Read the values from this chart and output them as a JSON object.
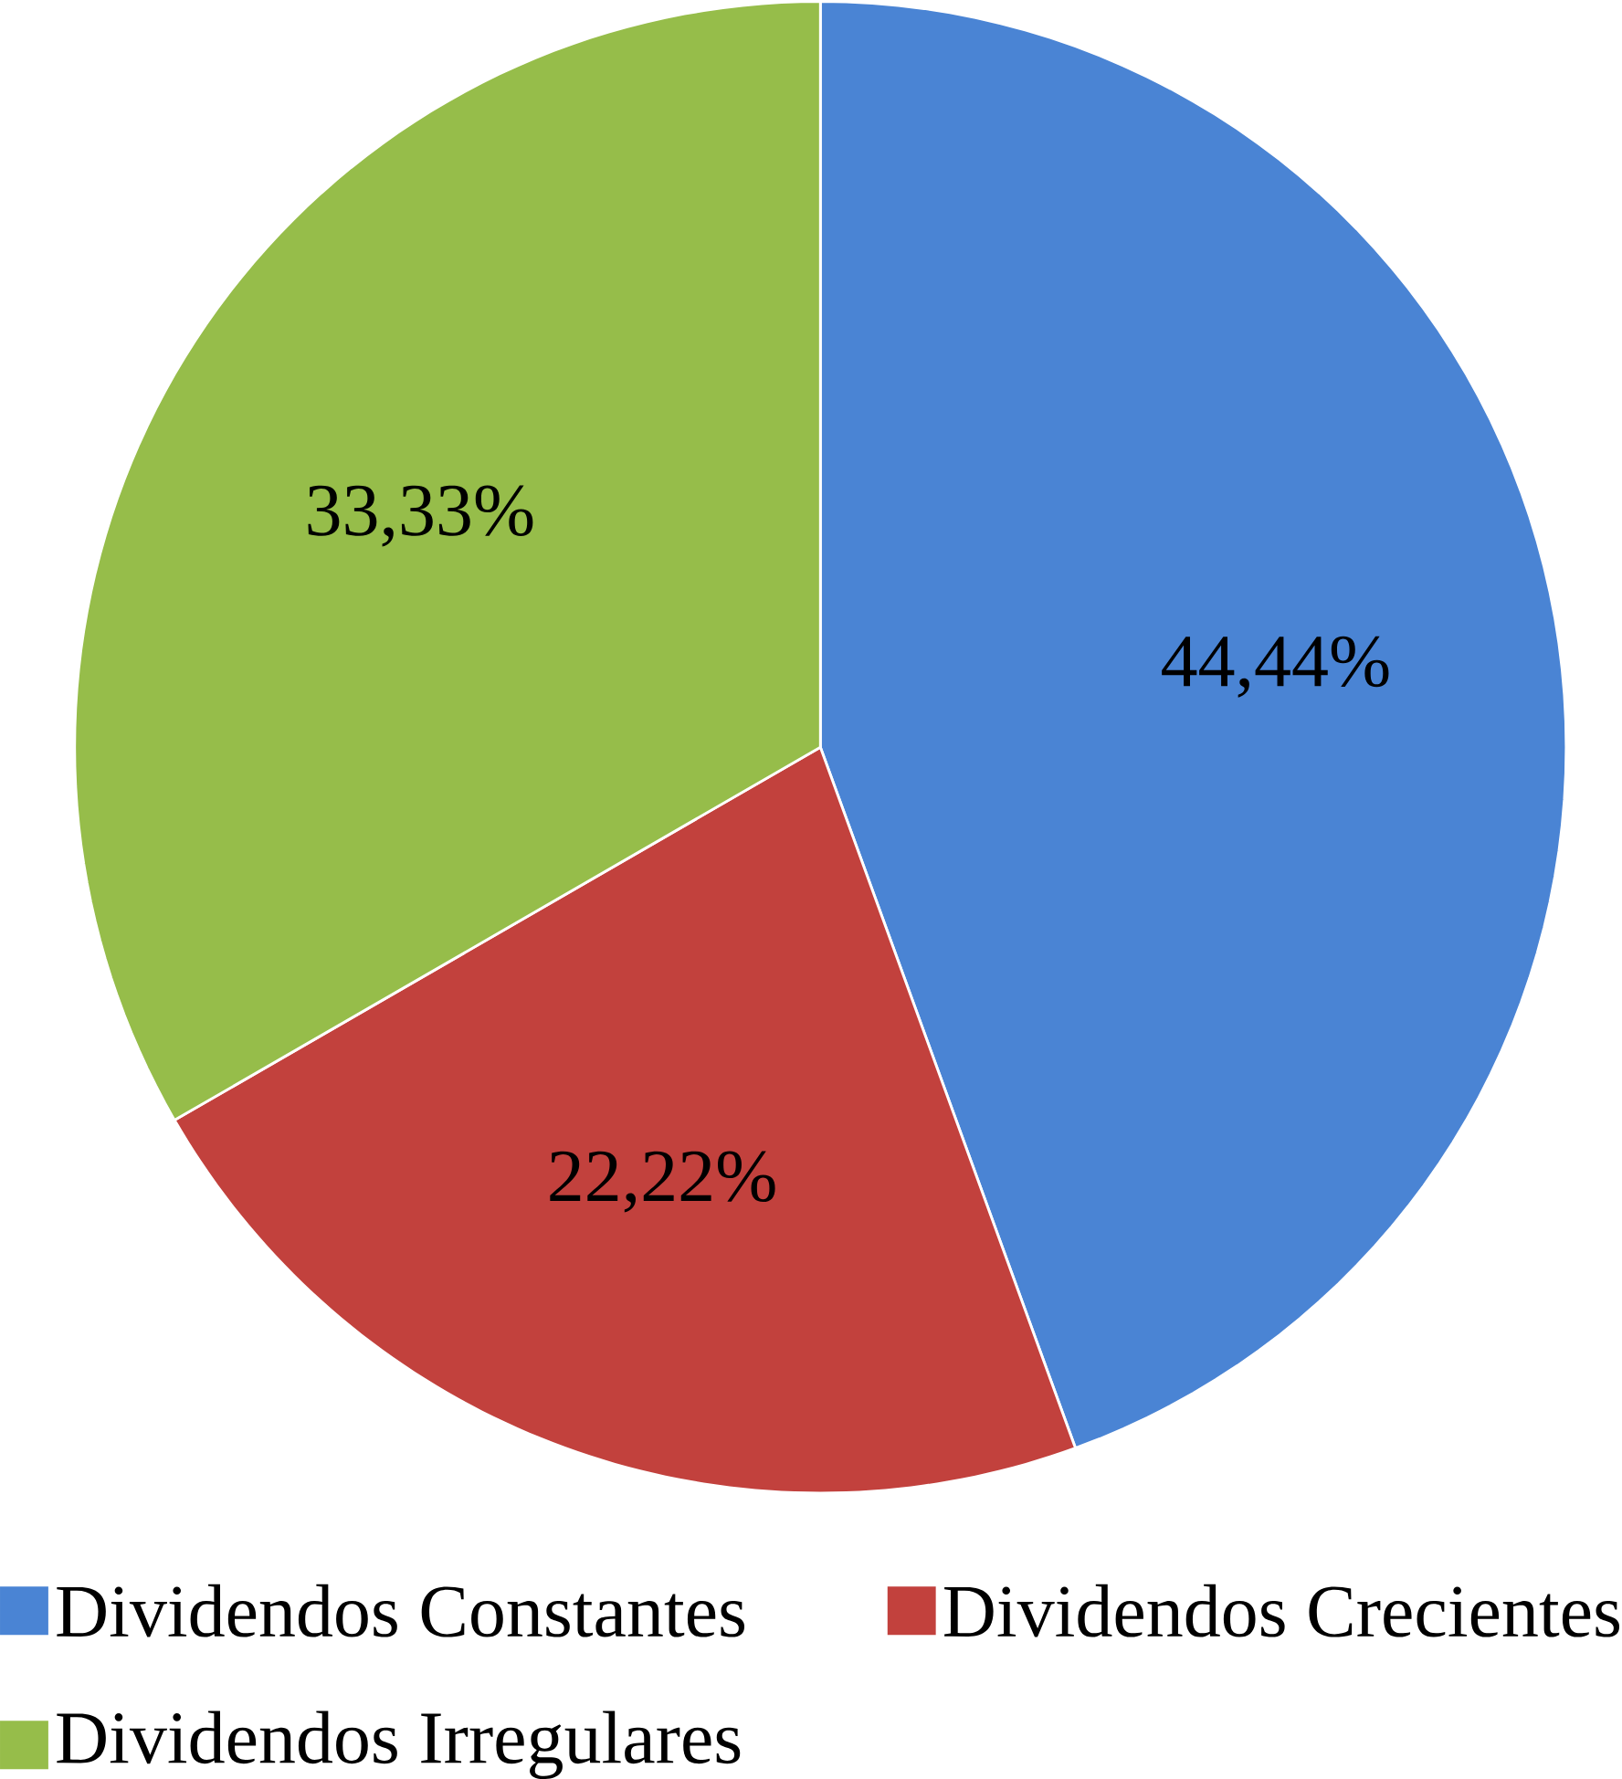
{
  "chart_data": {
    "type": "pie",
    "categories": [
      "Dividendos Constantes",
      "Dividendos Crecientes",
      "Dividendos Irregulares"
    ],
    "values": [
      44.44,
      22.22,
      33.33
    ],
    "colors": [
      "#4a84d4",
      "#c2413d",
      "#96bd4a"
    ],
    "value_labels": [
      "44,44%",
      "22,22%",
      "33,33%"
    ],
    "legend": "bottom"
  }
}
